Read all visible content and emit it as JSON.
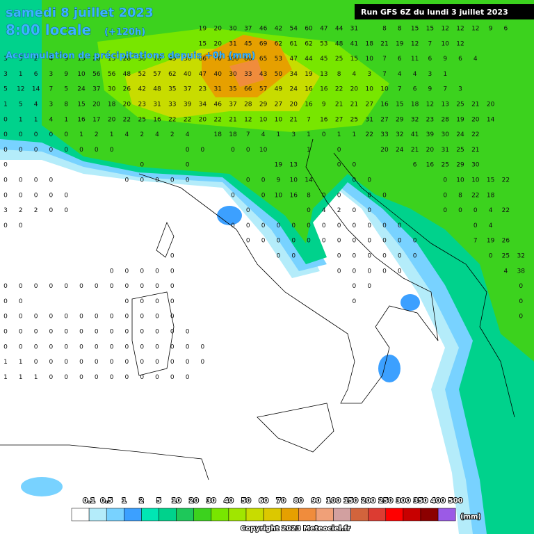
{
  "header": {
    "title": "samedi 8 juillet 2023",
    "time": "8:00 locale",
    "lead": "(+120h)",
    "subtitle": "Accumulation de précipitations depuis +0h (mm)",
    "run": "Run GFS 6Z du lundi 3 juillet 2023"
  },
  "legend": {
    "labels": [
      "0.1",
      "0.5",
      "1",
      "2",
      "5",
      "10",
      "20",
      "30",
      "40",
      "50",
      "60",
      "70",
      "80",
      "90",
      "100",
      "150",
      "200",
      "250",
      "300",
      "350",
      "400",
      "500"
    ],
    "colors": [
      "#ffffff",
      "#b4ecfa",
      "#78d2ff",
      "#3ca0ff",
      "#00e6b4",
      "#00d28c",
      "#1ec85a",
      "#3cd21e",
      "#78e600",
      "#a0e600",
      "#c8dc00",
      "#dcc800",
      "#e6a000",
      "#f08c3c",
      "#f0a078",
      "#d2a0a0",
      "#d2643c",
      "#dc3c32",
      "#ff0000",
      "#c80000",
      "#8c0000",
      "#9b5ae6"
    ],
    "unit": "(mm)"
  },
  "copyright": "Copyright 2023 Meteociel.fr",
  "grid": {
    "rows": [
      [
        null,
        null,
        null,
        null,
        null,
        null,
        null,
        null,
        null,
        null,
        null,
        null,
        null,
        19,
        20,
        30,
        37,
        46,
        42,
        54,
        60,
        47,
        44,
        31,
        null,
        8,
        8,
        15,
        15,
        12,
        12,
        12,
        9,
        6
      ],
      [
        null,
        null,
        null,
        null,
        null,
        null,
        null,
        null,
        null,
        null,
        null,
        null,
        null,
        15,
        20,
        31,
        45,
        69,
        62,
        61,
        62,
        53,
        48,
        41,
        18,
        21,
        19,
        12,
        7,
        10,
        12
      ],
      [
        3,
        3,
        2,
        4,
        9,
        15,
        20,
        15,
        28,
        30,
        18,
        45,
        30,
        66,
        70,
        100,
        86,
        65,
        53,
        47,
        44,
        45,
        25,
        15,
        10,
        7,
        6,
        11,
        6,
        9,
        6,
        4
      ],
      [
        3,
        1,
        6,
        3,
        9,
        10,
        56,
        56,
        48,
        52,
        57,
        62,
        40,
        47,
        40,
        30,
        33,
        43,
        50,
        34,
        19,
        13,
        8,
        4,
        3,
        7,
        4,
        4,
        3,
        1
      ],
      [
        5,
        12,
        14,
        7,
        5,
        24,
        37,
        30,
        26,
        42,
        48,
        35,
        37,
        23,
        31,
        35,
        66,
        57,
        49,
        24,
        16,
        16,
        22,
        20,
        10,
        10,
        7,
        6,
        9,
        7,
        3
      ],
      [
        1,
        5,
        4,
        3,
        8,
        15,
        20,
        18,
        20,
        23,
        31,
        33,
        39,
        34,
        46,
        37,
        28,
        29,
        27,
        20,
        16,
        9,
        21,
        21,
        27,
        16,
        15,
        18,
        12,
        13,
        25,
        21,
        20
      ],
      [
        0,
        1,
        1,
        4,
        1,
        16,
        17,
        20,
        22,
        25,
        16,
        22,
        22,
        20,
        22,
        21,
        12,
        10,
        10,
        21,
        7,
        16,
        27,
        25,
        31,
        27,
        29,
        32,
        23,
        28,
        19,
        20,
        14
      ],
      [
        0,
        0,
        0,
        0,
        0,
        1,
        2,
        1,
        4,
        2,
        4,
        2,
        4,
        null,
        18,
        18,
        7,
        4,
        1,
        3,
        1,
        0,
        1,
        1,
        22,
        33,
        32,
        41,
        39,
        30,
        24,
        22
      ],
      [
        0,
        0,
        0,
        0,
        0,
        0,
        0,
        0,
        null,
        null,
        null,
        null,
        0,
        0,
        null,
        0,
        0,
        10,
        null,
        null,
        1,
        null,
        0,
        null,
        null,
        20,
        24,
        21,
        20,
        31,
        25,
        21
      ],
      [
        0,
        null,
        null,
        null,
        null,
        null,
        null,
        null,
        null,
        0,
        null,
        null,
        0,
        null,
        null,
        null,
        null,
        null,
        19,
        13,
        null,
        null,
        0,
        0,
        null,
        null,
        null,
        6,
        16,
        25,
        29,
        30
      ],
      [
        0,
        0,
        0,
        0,
        null,
        null,
        null,
        null,
        0,
        0,
        0,
        0,
        0,
        null,
        null,
        null,
        0,
        0,
        9,
        10,
        14,
        null,
        null,
        0,
        0,
        null,
        null,
        null,
        null,
        0,
        10,
        10,
        15,
        22
      ],
      [
        0,
        0,
        0,
        0,
        0,
        null,
        null,
        null,
        null,
        null,
        null,
        null,
        null,
        null,
        null,
        0,
        null,
        0,
        10,
        16,
        8,
        0,
        0,
        null,
        0,
        0,
        null,
        null,
        null,
        0,
        8,
        22,
        18
      ],
      [
        3,
        2,
        2,
        0,
        0,
        null,
        null,
        null,
        null,
        null,
        null,
        null,
        null,
        null,
        null,
        null,
        0,
        null,
        null,
        null,
        0,
        4,
        2,
        0,
        0,
        null,
        null,
        null,
        null,
        0,
        0,
        0,
        4,
        22
      ],
      [
        0,
        0,
        null,
        null,
        null,
        null,
        null,
        null,
        null,
        null,
        null,
        null,
        null,
        null,
        null,
        0,
        0,
        0,
        0,
        0,
        0,
        0,
        0,
        0,
        0,
        0,
        0,
        null,
        null,
        null,
        null,
        0,
        4
      ],
      [
        null,
        null,
        null,
        null,
        null,
        null,
        null,
        null,
        null,
        null,
        null,
        null,
        null,
        null,
        null,
        null,
        0,
        0,
        0,
        0,
        0,
        0,
        0,
        0,
        0,
        0,
        0,
        0,
        null,
        null,
        null,
        7,
        19,
        26
      ],
      [
        null,
        null,
        null,
        null,
        null,
        null,
        null,
        null,
        null,
        null,
        null,
        0,
        null,
        null,
        null,
        null,
        null,
        null,
        0,
        0,
        null,
        null,
        0,
        0,
        0,
        0,
        0,
        0,
        null,
        null,
        null,
        null,
        0,
        25,
        32
      ],
      [
        null,
        null,
        null,
        null,
        null,
        null,
        null,
        0,
        0,
        0,
        0,
        0,
        null,
        null,
        null,
        null,
        null,
        null,
        null,
        null,
        null,
        null,
        0,
        0,
        0,
        0,
        0,
        null,
        null,
        null,
        null,
        null,
        null,
        4,
        38
      ],
      [
        0,
        0,
        0,
        0,
        0,
        0,
        0,
        0,
        0,
        0,
        0,
        0,
        null,
        null,
        null,
        null,
        null,
        null,
        null,
        null,
        null,
        null,
        null,
        0,
        0,
        null,
        null,
        null,
        null,
        null,
        null,
        null,
        null,
        null,
        0
      ],
      [
        0,
        0,
        null,
        null,
        null,
        null,
        null,
        null,
        0,
        0,
        0,
        0,
        null,
        null,
        null,
        null,
        null,
        null,
        null,
        null,
        null,
        null,
        null,
        0,
        null,
        null,
        null,
        null,
        null,
        null,
        null,
        null,
        null,
        null,
        0
      ],
      [
        0,
        0,
        0,
        0,
        0,
        0,
        0,
        0,
        0,
        0,
        0,
        0,
        null,
        null,
        null,
        null,
        null,
        null,
        null,
        null,
        null,
        null,
        null,
        null,
        null,
        null,
        null,
        null,
        null,
        null,
        null,
        null,
        null,
        null,
        0
      ],
      [
        0,
        0,
        0,
        0,
        0,
        0,
        0,
        0,
        0,
        0,
        0,
        0,
        0
      ],
      [
        0,
        0,
        0,
        0,
        0,
        0,
        0,
        0,
        0,
        0,
        0,
        0,
        0,
        0
      ],
      [
        1,
        1,
        0,
        0,
        0,
        0,
        0,
        0,
        0,
        0,
        0,
        0,
        0,
        0
      ],
      [
        1,
        1,
        1,
        0,
        0,
        0,
        0,
        0,
        0,
        0,
        0,
        0,
        0
      ]
    ]
  }
}
